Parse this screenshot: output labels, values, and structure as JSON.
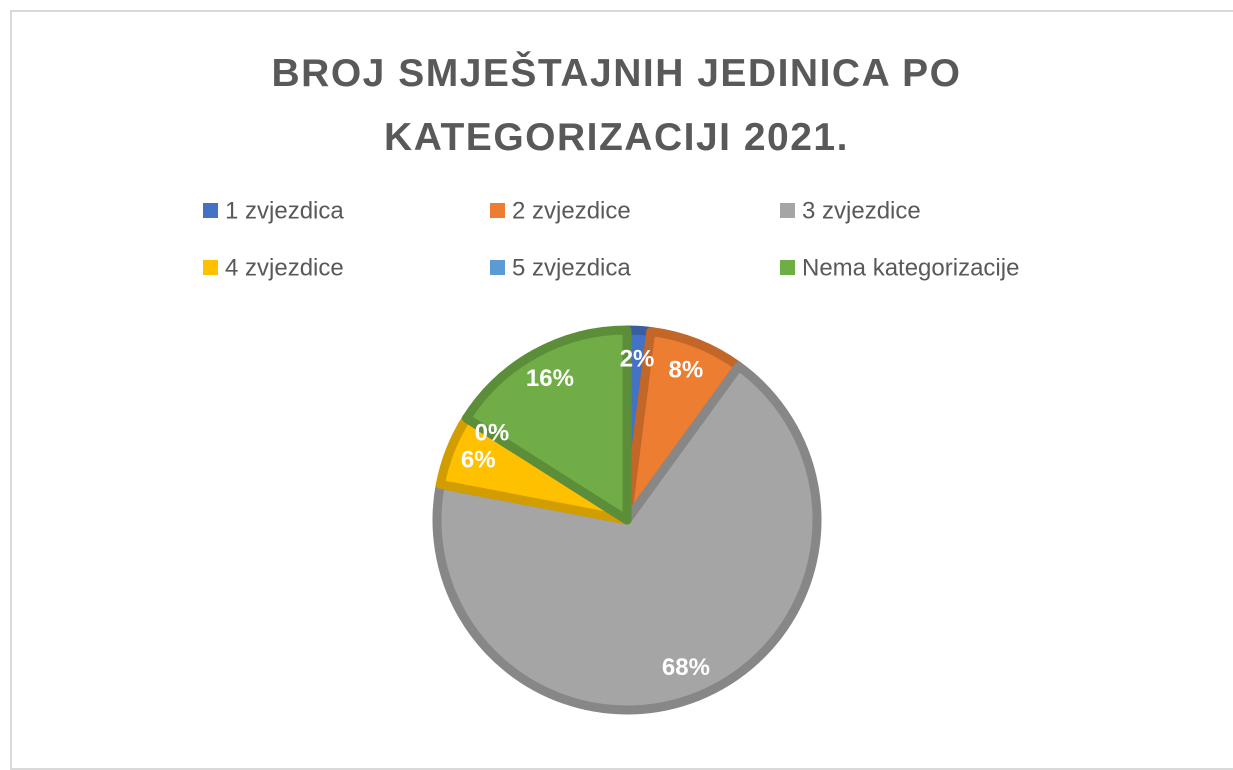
{
  "chart_data": {
    "type": "pie",
    "title": "BROJ SMJEŠTAJNIH JEDINICA PO KATEGORIZACIJI 2021.",
    "categories": [
      "1 zvjezdica",
      "2 zvjezdice",
      "3 zvjezdice",
      "4 zvjezdice",
      "5 zvjezdica",
      "Nema kategorizacije"
    ],
    "values": [
      2,
      8,
      68,
      6,
      0,
      16
    ],
    "value_labels": [
      "2%",
      "8%",
      "68%",
      "6%",
      "0%",
      "16%"
    ],
    "colors": [
      "#4472c4",
      "#ed7d31",
      "#a5a5a5",
      "#ffc000",
      "#5b9bd5",
      "#70ad47"
    ],
    "legend": "top"
  }
}
